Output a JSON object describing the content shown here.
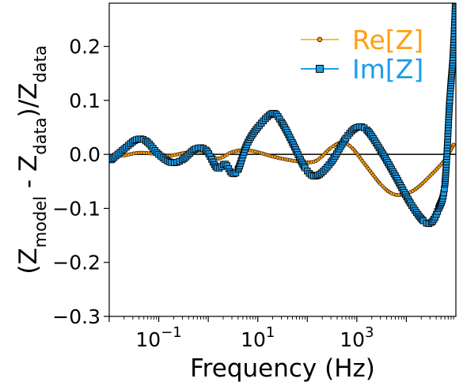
{
  "chart_data": {
    "type": "line",
    "xlabel": "Frequency (Hz)",
    "ylabel": "(Zmodel - Zdata)/Zdata",
    "x_scale": "log",
    "xlim": [
      0.01,
      100000
    ],
    "ylim": [
      -0.3,
      0.28
    ],
    "grid": false,
    "legend_position": "top-right",
    "reference_line_y": 0,
    "x_ticks": [
      {
        "value": 0.1,
        "base": "10",
        "exp": "−1"
      },
      {
        "value": 10,
        "base": "10",
        "exp": "1"
      },
      {
        "value": 1000,
        "base": "10",
        "exp": "3"
      }
    ],
    "y_ticks": [
      {
        "value": 0.2,
        "label": "0.2"
      },
      {
        "value": 0.1,
        "label": "0.1"
      },
      {
        "value": 0.0,
        "label": "0.0"
      },
      {
        "value": -0.1,
        "label": "−0.1"
      },
      {
        "value": -0.2,
        "label": "−0.2"
      },
      {
        "value": -0.3,
        "label": "−0.3"
      }
    ],
    "series": [
      {
        "name": "Re[Z]",
        "color": "#ff9f0e",
        "marker": "circle",
        "points": [
          [
            0.011,
            -0.005
          ],
          [
            0.02,
            -0.002
          ],
          [
            0.04,
            0.003
          ],
          [
            0.08,
            0.001
          ],
          [
            0.15,
            -0.003
          ],
          [
            0.3,
            0.002
          ],
          [
            0.6,
            0.006
          ],
          [
            1.0,
            0.002
          ],
          [
            1.6,
            -0.008
          ],
          [
            3.0,
            0.004
          ],
          [
            5.5,
            0.008
          ],
          [
            10,
            0.004
          ],
          [
            20,
            -0.004
          ],
          [
            40,
            -0.01
          ],
          [
            80,
            -0.014
          ],
          [
            150,
            -0.012
          ],
          [
            300,
            0.012
          ],
          [
            500,
            0.022
          ],
          [
            800,
            0.012
          ],
          [
            1500,
            -0.02
          ],
          [
            3000,
            -0.055
          ],
          [
            5000,
            -0.072
          ],
          [
            8000,
            -0.075
          ],
          [
            15000,
            -0.065
          ],
          [
            30000,
            -0.04
          ],
          [
            60000,
            -0.01
          ],
          [
            90000,
            0.018
          ]
        ]
      },
      {
        "name": "Im[Z]",
        "color": "#1e9ce8",
        "marker": "square",
        "points": [
          [
            0.011,
            -0.01
          ],
          [
            0.02,
            0.01
          ],
          [
            0.035,
            0.027
          ],
          [
            0.055,
            0.025
          ],
          [
            0.1,
            0.0
          ],
          [
            0.18,
            -0.015
          ],
          [
            0.3,
            -0.01
          ],
          [
            0.55,
            0.01
          ],
          [
            0.9,
            0.008
          ],
          [
            1.5,
            -0.025
          ],
          [
            2.2,
            -0.018
          ],
          [
            3.0,
            -0.035
          ],
          [
            4.0,
            -0.028
          ],
          [
            6.0,
            0.018
          ],
          [
            10,
            0.05
          ],
          [
            20,
            0.076
          ],
          [
            30,
            0.06
          ],
          [
            50,
            0.022
          ],
          [
            90,
            -0.025
          ],
          [
            150,
            -0.04
          ],
          [
            300,
            -0.015
          ],
          [
            600,
            0.03
          ],
          [
            1000,
            0.05
          ],
          [
            1600,
            0.045
          ],
          [
            3000,
            0.008
          ],
          [
            6000,
            -0.04
          ],
          [
            12000,
            -0.09
          ],
          [
            22000,
            -0.123
          ],
          [
            32000,
            -0.126
          ],
          [
            45000,
            -0.1
          ],
          [
            60000,
            -0.055
          ],
          [
            75000,
            0.1
          ],
          [
            88000,
            0.185
          ],
          [
            100000,
            0.3
          ]
        ]
      }
    ]
  }
}
